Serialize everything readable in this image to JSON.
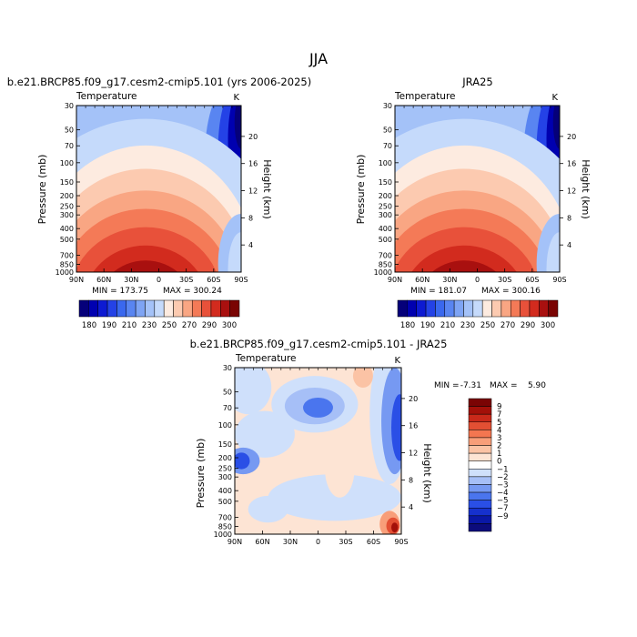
{
  "figure": {
    "season": "JJA",
    "colors": {
      "abs": [
        "#05007a",
        "#0000b0",
        "#0d1ad2",
        "#2442e6",
        "#3a68ee",
        "#5985f1",
        "#7ea4f4",
        "#a4c2f8",
        "#c5dafb",
        "#fdebe0",
        "#fccab0",
        "#f9a683",
        "#f47a57",
        "#e8513a",
        "#d22b1e",
        "#a9100f",
        "#7a0403"
      ],
      "diff": [
        "#0c0c7c",
        "#0a18a6",
        "#1631cd",
        "#2a4fe6",
        "#4a75ee",
        "#7699f2",
        "#a6bff7",
        "#cfe0fb",
        "#ffffff",
        "#fde4d4",
        "#fbc3a5",
        "#f89e79",
        "#f37650",
        "#e34f33",
        "#c9291a",
        "#a31009",
        "#7a0404"
      ]
    }
  },
  "chart_data": [
    {
      "type": "heatmap",
      "title": "b.e21.BRCP85.f09_g17.cesm2-cmip5.101 (yrs 2006-2025)",
      "left_label": "Temperature",
      "right_label": "K",
      "xlabel": "",
      "ylabel": "Pressure (mb)",
      "ylabel_right": "Height (km)",
      "x_ticks": [
        "90N",
        "60N",
        "30N",
        "0",
        "30S",
        "60S",
        "90S"
      ],
      "y_ticks": [
        "30",
        "50",
        "70",
        "100",
        "150",
        "200",
        "250",
        "300",
        "400",
        "500",
        "700",
        "850",
        "1000"
      ],
      "height_ticks": [
        "20",
        "16",
        "12",
        "8",
        "4"
      ],
      "min_label": "MIN = 173.75",
      "max_label": "MAX = 300.24",
      "levels": [
        180,
        190,
        200,
        210,
        220,
        230,
        240,
        250,
        260,
        270,
        280,
        290,
        300
      ],
      "colorbar_labels": [
        "180",
        "190",
        "210",
        "230",
        "250",
        "270",
        "290",
        "300"
      ],
      "min": 173.75,
      "max": 300.24
    },
    {
      "type": "heatmap",
      "title": "JRA25",
      "left_label": "Temperature",
      "right_label": "K",
      "xlabel": "",
      "ylabel": "Pressure (mb)",
      "ylabel_right": "Height (km)",
      "x_ticks": [
        "90N",
        "60N",
        "30N",
        "0",
        "30S",
        "60S",
        "90S"
      ],
      "y_ticks": [
        "30",
        "50",
        "70",
        "100",
        "150",
        "200",
        "250",
        "300",
        "400",
        "500",
        "700",
        "850",
        "1000"
      ],
      "height_ticks": [
        "20",
        "16",
        "12",
        "8",
        "4"
      ],
      "min_label": "MIN = 181.07",
      "max_label": "MAX = 300.16",
      "levels": [
        180,
        190,
        200,
        210,
        220,
        230,
        240,
        250,
        260,
        270,
        280,
        290,
        300
      ],
      "colorbar_labels": [
        "180",
        "190",
        "210",
        "230",
        "250",
        "270",
        "290",
        "300"
      ],
      "min": 181.07,
      "max": 300.16
    },
    {
      "type": "heatmap",
      "title": "b.e21.BRCP85.f09_g17.cesm2-cmip5.101 - JRA25",
      "left_label": "Temperature",
      "right_label": "K",
      "xlabel": "",
      "ylabel": "Pressure (mb)",
      "ylabel_right": "Height (km)",
      "x_ticks": [
        "90N",
        "60N",
        "30N",
        "0",
        "30S",
        "60S",
        "90S"
      ],
      "y_ticks": [
        "30",
        "50",
        "70",
        "100",
        "150",
        "200",
        "250",
        "300",
        "400",
        "500",
        "700",
        "850",
        "1000"
      ],
      "height_ticks": [
        "20",
        "16",
        "12",
        "8",
        "4"
      ],
      "min_label": "MIN =",
      "min_value": "-7.31",
      "max_label": "MAX =",
      "max_value": "5.90",
      "levels": [
        -9,
        -7,
        -5,
        -4,
        -3,
        -2,
        -1,
        0,
        1,
        2,
        3,
        4,
        5,
        7,
        9
      ],
      "colorbar_labels": [
        "9",
        "7",
        "5",
        "4",
        "3",
        "2",
        "1",
        "0",
        "−1",
        "−2",
        "−3",
        "−4",
        "−5",
        "−7",
        "−9"
      ],
      "min": -7.31,
      "max": 5.9
    }
  ]
}
